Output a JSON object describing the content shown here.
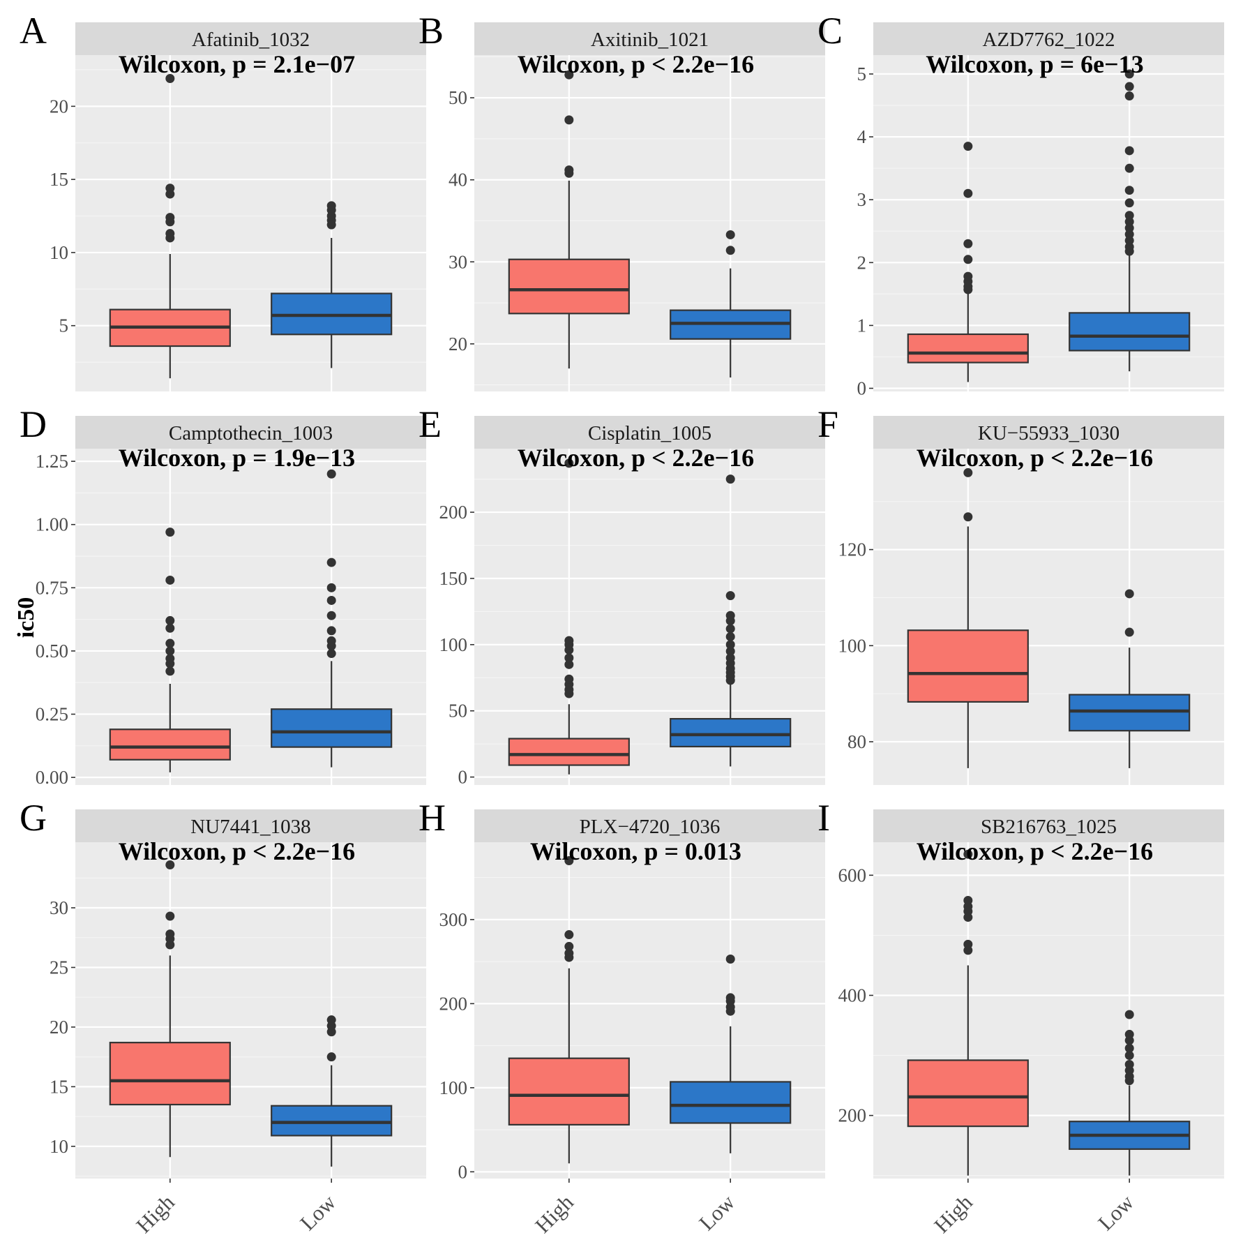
{
  "figure": {
    "y_axis_label": "ic50",
    "group_colors": {
      "High": "#F8766D",
      "Low": "#2C77C8"
    }
  },
  "chart_data": [
    {
      "letter": "A",
      "title": "Afatinib_1032",
      "test": "Wilcoxon, p = 2.1e−07",
      "type": "box",
      "categories": [
        "High",
        "Low"
      ],
      "ylim": [
        0.5,
        23.5
      ],
      "ticks": [
        5,
        10,
        15,
        20
      ],
      "tick_labels": [
        "5",
        "10",
        "15",
        "20"
      ],
      "boxes": [
        {
          "group": "High",
          "whisker_low": 1.4,
          "q1": 3.6,
          "median": 4.9,
          "q3": 6.1,
          "whisker_high": 9.9,
          "outliers": [
            11.0,
            11.3,
            12.1,
            12.4,
            14.0,
            14.4,
            21.9
          ]
        },
        {
          "group": "Low",
          "whisker_low": 2.1,
          "q1": 4.4,
          "median": 5.7,
          "q3": 7.2,
          "whisker_high": 11.0,
          "outliers": [
            11.9,
            12.2,
            12.5,
            12.9,
            13.2
          ]
        }
      ]
    },
    {
      "letter": "B",
      "title": "Axitinib_1021",
      "test": "Wilcoxon, p < 2.2e−16",
      "type": "box",
      "categories": [
        "High",
        "Low"
      ],
      "ylim": [
        14.2,
        55.2
      ],
      "ticks": [
        20,
        30,
        40,
        50
      ],
      "tick_labels": [
        "20",
        "30",
        "40",
        "50"
      ],
      "boxes": [
        {
          "group": "High",
          "whisker_low": 17.0,
          "q1": 23.7,
          "median": 26.6,
          "q3": 30.3,
          "whisker_high": 39.9,
          "outliers": [
            40.8,
            41.2,
            47.3,
            52.8
          ]
        },
        {
          "group": "Low",
          "whisker_low": 15.9,
          "q1": 20.6,
          "median": 22.5,
          "q3": 24.1,
          "whisker_high": 29.2,
          "outliers": [
            31.4,
            33.3
          ]
        }
      ]
    },
    {
      "letter": "C",
      "title": "AZD7762_1022",
      "test": "Wilcoxon, p = 6e−13",
      "type": "box",
      "categories": [
        "High",
        "Low"
      ],
      "ylim": [
        -0.05,
        5.3
      ],
      "ticks": [
        0,
        1,
        2,
        3,
        4,
        5
      ],
      "tick_labels": [
        "0",
        "1",
        "2",
        "3",
        "4",
        "5"
      ],
      "boxes": [
        {
          "group": "High",
          "whisker_low": 0.1,
          "q1": 0.41,
          "median": 0.56,
          "q3": 0.86,
          "whisker_high": 1.52,
          "outliers": [
            1.57,
            1.62,
            1.7,
            1.78,
            2.05,
            2.3,
            3.1,
            3.85
          ]
        },
        {
          "group": "Low",
          "whisker_low": 0.27,
          "q1": 0.6,
          "median": 0.83,
          "q3": 1.2,
          "whisker_high": 2.12,
          "outliers": [
            2.18,
            2.25,
            2.35,
            2.45,
            2.55,
            2.65,
            2.75,
            2.95,
            3.15,
            3.5,
            3.78,
            4.65,
            4.8,
            5.0
          ]
        }
      ]
    },
    {
      "letter": "D",
      "title": "Camptothecin_1003",
      "test": "Wilcoxon, p = 1.9e−13",
      "type": "box",
      "categories": [
        "High",
        "Low"
      ],
      "ylim": [
        -0.03,
        1.3
      ],
      "ticks": [
        0,
        0.25,
        0.5,
        0.75,
        1.0,
        1.25
      ],
      "tick_labels": [
        "0.00",
        "0.25",
        "0.50",
        "0.75",
        "1.00",
        "1.25"
      ],
      "boxes": [
        {
          "group": "High",
          "whisker_low": 0.02,
          "q1": 0.07,
          "median": 0.12,
          "q3": 0.19,
          "whisker_high": 0.37,
          "outliers": [
            0.42,
            0.45,
            0.47,
            0.5,
            0.53,
            0.59,
            0.62,
            0.78,
            0.97
          ]
        },
        {
          "group": "Low",
          "whisker_low": 0.04,
          "q1": 0.12,
          "median": 0.18,
          "q3": 0.27,
          "whisker_high": 0.46,
          "outliers": [
            0.49,
            0.52,
            0.54,
            0.58,
            0.64,
            0.7,
            0.75,
            0.85,
            1.2
          ]
        }
      ]
    },
    {
      "letter": "E",
      "title": "Cisplatin_1005",
      "test": "Wilcoxon, p < 2.2e−16",
      "type": "box",
      "categories": [
        "High",
        "Low"
      ],
      "ylim": [
        -6,
        248
      ],
      "ticks": [
        0,
        50,
        100,
        150,
        200
      ],
      "tick_labels": [
        "0",
        "50",
        "100",
        "150",
        "200"
      ],
      "boxes": [
        {
          "group": "High",
          "whisker_low": 2,
          "q1": 9,
          "median": 17,
          "q3": 29,
          "whisker_high": 55,
          "outliers": [
            63,
            66,
            70,
            74,
            85,
            90,
            96,
            100,
            103,
            237
          ]
        },
        {
          "group": "Low",
          "whisker_low": 8,
          "q1": 23,
          "median": 32,
          "q3": 44,
          "whisker_high": 70,
          "outliers": [
            73,
            76,
            79,
            82,
            86,
            90,
            95,
            100,
            106,
            112,
            118,
            122,
            137,
            225
          ]
        }
      ]
    },
    {
      "letter": "F",
      "title": "KU−55933_1030",
      "test": "Wilcoxon, p < 2.2e−16",
      "type": "box",
      "categories": [
        "High",
        "Low"
      ],
      "ylim": [
        71,
        141
      ],
      "ticks": [
        80,
        100,
        120
      ],
      "tick_labels": [
        "80",
        "100",
        "120"
      ],
      "boxes": [
        {
          "group": "High",
          "whisker_low": 74.5,
          "q1": 88.3,
          "median": 94.2,
          "q3": 103.2,
          "whisker_high": 124.8,
          "outliers": [
            126.8,
            136.0
          ]
        },
        {
          "group": "Low",
          "whisker_low": 74.5,
          "q1": 82.3,
          "median": 86.4,
          "q3": 89.8,
          "whisker_high": 99.6,
          "outliers": [
            102.8,
            110.8
          ]
        }
      ]
    },
    {
      "letter": "G",
      "title": "NU7441_1038",
      "test": "Wilcoxon, p < 2.2e−16",
      "type": "box",
      "categories": [
        "High",
        "Low"
      ],
      "ylim": [
        7.3,
        35.5
      ],
      "ticks": [
        10,
        15,
        20,
        25,
        30
      ],
      "tick_labels": [
        "10",
        "15",
        "20",
        "25",
        "30"
      ],
      "boxes": [
        {
          "group": "High",
          "whisker_low": 9.1,
          "q1": 13.5,
          "median": 15.5,
          "q3": 18.7,
          "whisker_high": 26.0,
          "outliers": [
            26.9,
            27.4,
            27.8,
            29.3,
            33.6
          ]
        },
        {
          "group": "Low",
          "whisker_low": 8.3,
          "q1": 10.9,
          "median": 12.0,
          "q3": 13.4,
          "whisker_high": 16.8,
          "outliers": [
            17.5,
            19.6,
            20.1,
            20.6
          ]
        }
      ]
    },
    {
      "letter": "H",
      "title": "PLX−4720_1036",
      "test": "Wilcoxon, p = 0.013",
      "type": "box",
      "categories": [
        "High",
        "Low"
      ],
      "ylim": [
        -8,
        392
      ],
      "ticks": [
        0,
        100,
        200,
        300
      ],
      "tick_labels": [
        "0",
        "100",
        "200",
        "300"
      ],
      "boxes": [
        {
          "group": "High",
          "whisker_low": 10,
          "q1": 56,
          "median": 91,
          "q3": 135,
          "whisker_high": 242,
          "outliers": [
            255,
            260,
            268,
            282,
            370
          ]
        },
        {
          "group": "Low",
          "whisker_low": 22,
          "q1": 58,
          "median": 79,
          "q3": 107,
          "whisker_high": 173,
          "outliers": [
            191,
            196,
            203,
            207,
            253
          ]
        }
      ]
    },
    {
      "letter": "I",
      "title": "SB216763_1025",
      "test": "Wilcoxon, p < 2.2e−16",
      "type": "box",
      "categories": [
        "High",
        "Low"
      ],
      "ylim": [
        95,
        655
      ],
      "ticks": [
        200,
        400,
        600
      ],
      "tick_labels": [
        "200",
        "400",
        "600"
      ],
      "boxes": [
        {
          "group": "High",
          "whisker_low": 100,
          "q1": 182,
          "median": 231,
          "q3": 292,
          "whisker_high": 450,
          "outliers": [
            475,
            485,
            530,
            540,
            548,
            558,
            635
          ]
        },
        {
          "group": "Low",
          "whisker_low": 100,
          "q1": 144,
          "median": 167,
          "q3": 190,
          "whisker_high": 250,
          "outliers": [
            258,
            265,
            275,
            285,
            300,
            312,
            325,
            335,
            368
          ]
        }
      ]
    }
  ]
}
